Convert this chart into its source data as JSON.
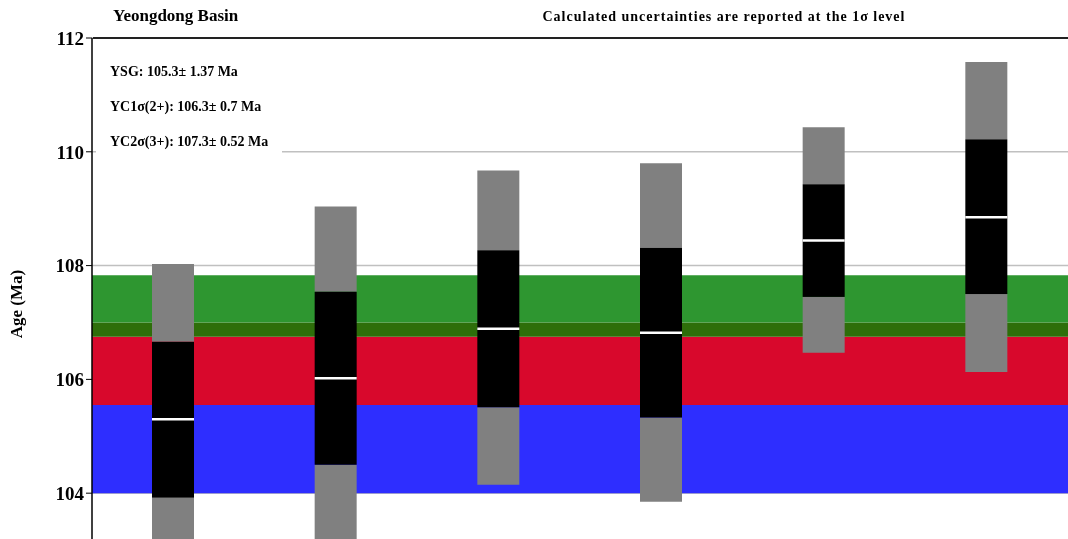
{
  "chart_data": {
    "type": "box",
    "title": "Yeongdong Basin",
    "subtitle": "Calculated uncertainties are reported at the 1σ level",
    "ylabel": "Age (Ma)",
    "annotations": [
      "YSG: 105.3± 1.37 Ma",
      "YC1σ(2+): 106.3± 0.7 Ma",
      "YC2σ(3+): 107.3± 0.52 Ma"
    ],
    "categories": [
      null,
      null,
      null,
      null,
      null,
      null
    ],
    "boxes": [
      {
        "low": 102.65,
        "q1": 103.92,
        "median": 105.3,
        "q3": 106.66,
        "high": 108.03
      },
      {
        "low": 103.01,
        "q1": 104.5,
        "median": 106.02,
        "q3": 107.54,
        "high": 109.04
      },
      {
        "low": 104.15,
        "q1": 105.51,
        "median": 106.89,
        "q3": 108.27,
        "high": 109.67
      },
      {
        "low": 103.85,
        "q1": 105.33,
        "median": 106.82,
        "q3": 108.31,
        "high": 109.8
      },
      {
        "low": 106.47,
        "q1": 107.45,
        "median": 108.44,
        "q3": 109.43,
        "high": 110.43
      },
      {
        "low": 106.13,
        "q1": 107.5,
        "median": 108.85,
        "q3": 110.22,
        "high": 111.58
      }
    ],
    "color": "#000000",
    "bands": [
      {
        "axis": "y",
        "from": 104,
        "to": 105.55,
        "color": "#2e2eff"
      },
      {
        "axis": "y",
        "from": 105.55,
        "to": 106.75,
        "color": "#d8082c"
      },
      {
        "axis": "y",
        "from": 106.75,
        "to": 107.0,
        "color": "#2e6e0a"
      },
      {
        "axis": "y",
        "from": 107.0,
        "to": 107.83,
        "color": "#2e9630"
      }
    ],
    "ylim": [
      102.65,
      112
    ],
    "yticks": [
      104,
      106,
      108,
      110,
      112
    ],
    "grid": "y",
    "tick_labels": "y"
  }
}
